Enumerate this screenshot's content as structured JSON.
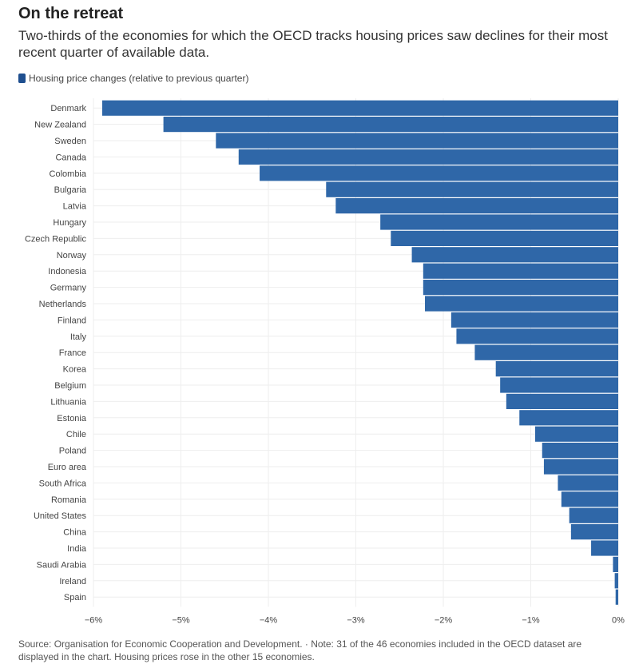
{
  "header": {
    "title": "On the retreat",
    "subtitle": "Two-thirds of the economies for which the OECD tracks housing prices saw declines for their most recent quarter of available data."
  },
  "legend": {
    "label": "Housing price changes (relative to previous quarter)"
  },
  "footer": {
    "source": "Source: Organisation for Economic Cooperation and Development. · Note: 31 of the 46 economies included in the OECD dataset are displayed in the chart. Housing prices rose in the other 15 economies."
  },
  "colors": {
    "bar": "#2f67a8",
    "grid": "#eeeeee",
    "legend_swatch": "#1f4f8f"
  },
  "chart_data": {
    "type": "bar",
    "orientation": "horizontal",
    "categories": [
      "Denmark",
      "New Zealand",
      "Sweden",
      "Canada",
      "Colombia",
      "Bulgaria",
      "Latvia",
      "Hungary",
      "Czech Republic",
      "Norway",
      "Indonesia",
      "Germany",
      "Netherlands",
      "Finland",
      "Italy",
      "France",
      "Korea",
      "Belgium",
      "Lithuania",
      "Estonia",
      "Chile",
      "Poland",
      "Euro area",
      "South Africa",
      "Romania",
      "United States",
      "China",
      "India",
      "Saudi Arabia",
      "Ireland",
      "Spain"
    ],
    "series": [
      {
        "name": "Housing price changes (relative to previous quarter)",
        "values": [
          -5.9,
          -5.2,
          -4.6,
          -4.34,
          -4.1,
          -3.34,
          -3.23,
          -2.72,
          -2.6,
          -2.36,
          -2.23,
          -2.23,
          -2.21,
          -1.91,
          -1.85,
          -1.64,
          -1.4,
          -1.35,
          -1.28,
          -1.13,
          -0.95,
          -0.87,
          -0.85,
          -0.69,
          -0.65,
          -0.56,
          -0.54,
          -0.31,
          -0.06,
          -0.04,
          -0.03
        ]
      }
    ],
    "xlim": [
      -6,
      0
    ],
    "xticks": [
      -6,
      -5,
      -4,
      -3,
      -2,
      -1,
      0
    ],
    "xtick_labels": [
      "−6%",
      "−5%",
      "−4%",
      "−3%",
      "−2%",
      "−1%",
      "0%"
    ],
    "grid": true,
    "legend_position": "top-left"
  }
}
